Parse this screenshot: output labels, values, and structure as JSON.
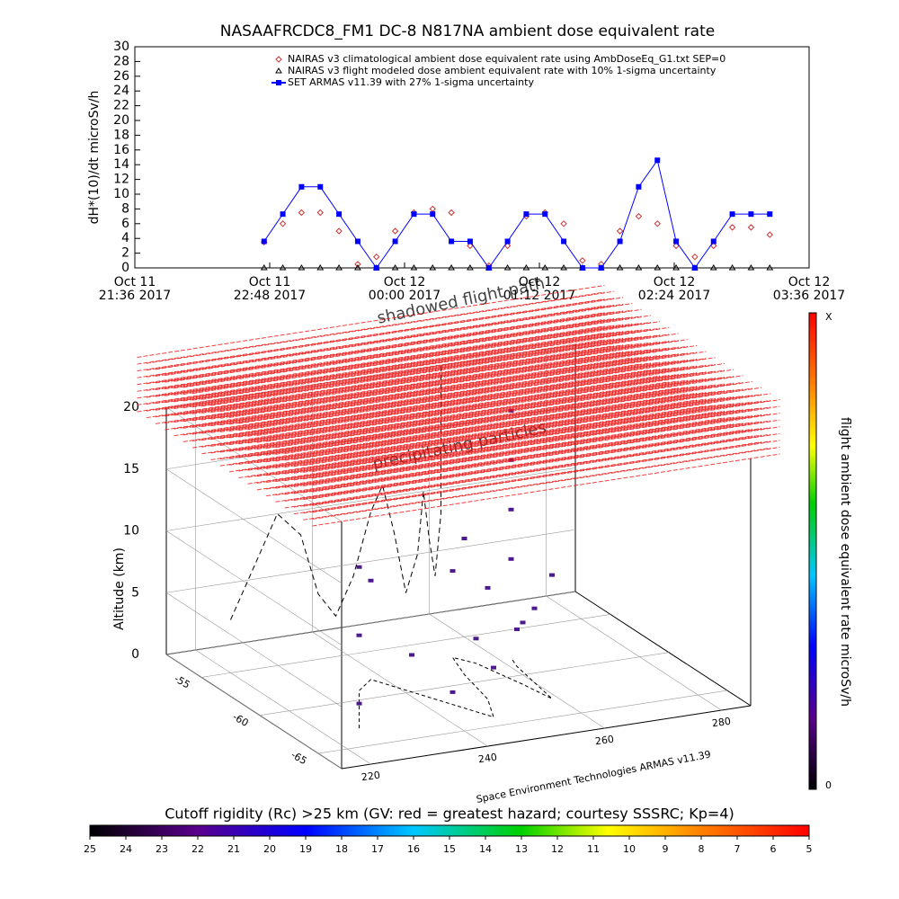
{
  "chart_data": [
    {
      "type": "line",
      "title": "NASAAFRCDC8_FM1 DC-8   N817NA ambient dose equivalent rate",
      "y_label": "dH*(10)/dt microSv/h",
      "xlim": [
        "2017-10-11T21:36",
        "2017-10-12T03:36"
      ],
      "xticks": [
        {
          "value": "2017-10-11T21:36",
          "label": [
            "Oct 11",
            "21:36 2017"
          ]
        },
        {
          "value": "2017-10-11T22:48",
          "label": [
            "Oct 11",
            "22:48 2017"
          ]
        },
        {
          "value": "2017-10-12T00:00",
          "label": [
            "Oct 12",
            "00:00 2017"
          ]
        },
        {
          "value": "2017-10-12T01:12",
          "label": [
            "Oct 12",
            "01:12 2017"
          ]
        },
        {
          "value": "2017-10-12T02:24",
          "label": [
            "Oct 12",
            "02:24 2017"
          ]
        },
        {
          "value": "2017-10-12T03:36",
          "label": [
            "Oct 12",
            "03:36 2017"
          ]
        }
      ],
      "ylim": [
        0,
        30
      ],
      "yticks": [
        0,
        2,
        4,
        6,
        8,
        10,
        12,
        14,
        16,
        18,
        20,
        22,
        24,
        26,
        28,
        30
      ],
      "x": [
        "2017-10-11T22:45",
        "2017-10-11T22:55",
        "2017-10-11T23:05",
        "2017-10-11T23:15",
        "2017-10-11T23:25",
        "2017-10-11T23:35",
        "2017-10-11T23:45",
        "2017-10-11T23:55",
        "2017-10-12T00:05",
        "2017-10-12T00:15",
        "2017-10-12T00:25",
        "2017-10-12T00:35",
        "2017-10-12T00:45",
        "2017-10-12T00:55",
        "2017-10-12T01:05",
        "2017-10-12T01:15",
        "2017-10-12T01:25",
        "2017-10-12T01:35",
        "2017-10-12T01:45",
        "2017-10-12T01:55",
        "2017-10-12T02:05",
        "2017-10-12T02:15",
        "2017-10-12T02:25",
        "2017-10-12T02:35",
        "2017-10-12T02:45",
        "2017-10-12T02:55",
        "2017-10-12T03:05",
        "2017-10-12T03:15"
      ],
      "series": [
        {
          "name": "NAIRAS v3 climatological ambient dose equivalent rate using AmbDoseEq_G1.txt SEP=0",
          "color": "#cc3333",
          "marker": "diamond",
          "values": [
            3.5,
            6,
            7.5,
            7.5,
            5,
            0.5,
            1.5,
            5,
            7.5,
            8,
            7.5,
            3,
            0.3,
            3,
            7,
            7.5,
            6,
            1,
            0.5,
            5,
            7,
            6,
            3,
            1.5,
            3,
            5.5,
            5.5,
            4.5
          ]
        },
        {
          "name": "NAIRAS v3 flight modeled dose ambient equivalent rate with 10% 1-sigma uncertainty",
          "color": "#000000",
          "marker": "triangle",
          "values": [
            0,
            0,
            0,
            0,
            0,
            0,
            0,
            0,
            0,
            0,
            0,
            0,
            0,
            0,
            0,
            0,
            0,
            0,
            0,
            0,
            0,
            0,
            0,
            0,
            0,
            0,
            0,
            0
          ]
        },
        {
          "name": "SET ARMAS v11.39 with 27% 1-sigma uncertainty",
          "color": "#0000ff",
          "marker": "square",
          "values": [
            3.6,
            7.3,
            11,
            11,
            7.3,
            3.6,
            0,
            3.6,
            7.3,
            7.3,
            3.6,
            3.6,
            0,
            3.6,
            7.3,
            7.3,
            3.6,
            0,
            0,
            3.6,
            11,
            14.6,
            3.6,
            0,
            3.6,
            7.3,
            7.3,
            7.3
          ]
        }
      ]
    },
    {
      "type": "track3d",
      "z_label": "Altitude (km)",
      "zlim": [
        0,
        20
      ],
      "zticks": [
        0,
        5,
        10,
        15,
        20
      ],
      "xlim": [
        215,
        285
      ],
      "xticks": [
        220,
        240,
        260,
        280
      ],
      "ylim": [
        -67,
        -52
      ],
      "yticks": [
        -65,
        -60,
        -55
      ],
      "color": "#4b1a8c",
      "track": {
        "lon": [
          226,
          230,
          234,
          238,
          241,
          244,
          247,
          250,
          252,
          254,
          256,
          258,
          259,
          260,
          261,
          262,
          262,
          262,
          262
        ],
        "lat": [
          -63,
          -61,
          -59,
          -58,
          -60,
          -62,
          -64,
          -62,
          -59,
          -57,
          -58,
          -61,
          -63,
          -61,
          -59,
          -58,
          -58,
          -58,
          -58
        ],
        "alt": [
          2,
          6,
          10,
          8,
          3,
          1,
          4,
          9,
          11,
          7,
          2,
          5,
          10,
          6,
          3,
          8,
          12,
          16,
          20
        ]
      },
      "annotations": [
        "shadowed flight path",
        "precipitating particles",
        "Space Environment Technologies ARMAS v11.39"
      ]
    },
    {
      "type": "colorbar",
      "orientation": "vertical",
      "label": "flight ambient dose equivalent rate microSv/h",
      "ticks": [
        "X",
        "0"
      ]
    },
    {
      "type": "colorbar",
      "orientation": "horizontal",
      "title": "Cutoff rigidity (Rc) >25 km (GV: red = greatest hazard; courtesy SSSRC; Kp=4)",
      "ticks": [
        25,
        24,
        23,
        22,
        21,
        20,
        19,
        18,
        17,
        16,
        15,
        14,
        13,
        12,
        11,
        10,
        9,
        8,
        7,
        6,
        5
      ]
    }
  ]
}
